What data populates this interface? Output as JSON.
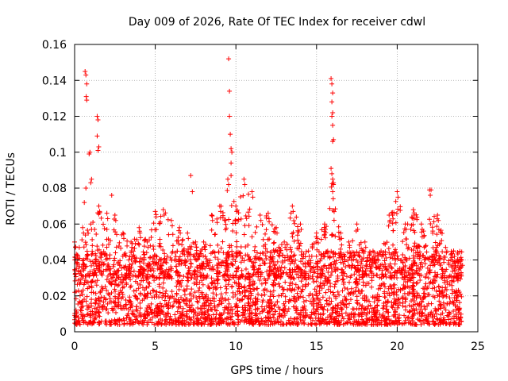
{
  "chart_data": {
    "type": "scatter",
    "title": "Day 009 of 2026, Rate Of TEC Index for receiver cdwl",
    "xlabel": "GPS time / hours",
    "ylabel": "ROTI / TECUs",
    "xlim": [
      0,
      25
    ],
    "ylim": [
      0,
      0.16
    ],
    "x_ticks": [
      0,
      5,
      10,
      15,
      20,
      25
    ],
    "x_tick_labels": [
      "0",
      "5",
      "10",
      "15",
      "20",
      "25"
    ],
    "y_ticks": [
      0,
      0.02,
      0.04,
      0.06,
      0.08,
      0.1,
      0.12,
      0.14,
      0.16
    ],
    "y_tick_labels": [
      "0",
      "0.02",
      "0.04",
      "0.06",
      "0.08",
      "0.1",
      "0.12",
      "0.14",
      "0.16"
    ],
    "grid": true,
    "marker": "+",
    "color": "#ff0000",
    "series": [
      {
        "name": "ROTI",
        "description_of_density": "dense band between ~0.005 and ~0.045 TECU/min for 0-24 h",
        "background_band": {
          "x_range": [
            0,
            24
          ],
          "y_min": 0.004,
          "y_max": 0.045
        },
        "envelope": [
          {
            "x": 0.0,
            "y": 0.05
          },
          {
            "x": 0.5,
            "y": 0.058
          },
          {
            "x": 1.0,
            "y": 0.06
          },
          {
            "x": 1.5,
            "y": 0.07
          },
          {
            "x": 2.0,
            "y": 0.066
          },
          {
            "x": 2.5,
            "y": 0.065
          },
          {
            "x": 3.0,
            "y": 0.055
          },
          {
            "x": 3.5,
            "y": 0.05
          },
          {
            "x": 4.0,
            "y": 0.058
          },
          {
            "x": 4.5,
            "y": 0.05
          },
          {
            "x": 5.0,
            "y": 0.067
          },
          {
            "x": 5.5,
            "y": 0.068
          },
          {
            "x": 6.0,
            "y": 0.062
          },
          {
            "x": 6.5,
            "y": 0.058
          },
          {
            "x": 7.0,
            "y": 0.055
          },
          {
            "x": 7.5,
            "y": 0.05
          },
          {
            "x": 8.0,
            "y": 0.05
          },
          {
            "x": 8.5,
            "y": 0.065
          },
          {
            "x": 9.0,
            "y": 0.07
          },
          {
            "x": 9.5,
            "y": 0.085
          },
          {
            "x": 10.0,
            "y": 0.07
          },
          {
            "x": 10.5,
            "y": 0.085
          },
          {
            "x": 11.0,
            "y": 0.078
          },
          {
            "x": 11.5,
            "y": 0.065
          },
          {
            "x": 12.0,
            "y": 0.066
          },
          {
            "x": 12.5,
            "y": 0.058
          },
          {
            "x": 13.0,
            "y": 0.05
          },
          {
            "x": 13.5,
            "y": 0.07
          },
          {
            "x": 14.0,
            "y": 0.06
          },
          {
            "x": 14.5,
            "y": 0.045
          },
          {
            "x": 15.0,
            "y": 0.055
          },
          {
            "x": 15.5,
            "y": 0.06
          },
          {
            "x": 16.0,
            "y": 0.085
          },
          {
            "x": 16.5,
            "y": 0.055
          },
          {
            "x": 17.0,
            "y": 0.05
          },
          {
            "x": 17.5,
            "y": 0.06
          },
          {
            "x": 18.0,
            "y": 0.05
          },
          {
            "x": 18.5,
            "y": 0.045
          },
          {
            "x": 19.0,
            "y": 0.045
          },
          {
            "x": 19.5,
            "y": 0.065
          },
          {
            "x": 20.0,
            "y": 0.078
          },
          {
            "x": 20.5,
            "y": 0.06
          },
          {
            "x": 21.0,
            "y": 0.068
          },
          {
            "x": 21.5,
            "y": 0.06
          },
          {
            "x": 22.0,
            "y": 0.079
          },
          {
            "x": 22.5,
            "y": 0.065
          },
          {
            "x": 23.0,
            "y": 0.047
          },
          {
            "x": 23.5,
            "y": 0.045
          },
          {
            "x": 24.0,
            "y": 0.04
          }
        ],
        "outliers": [
          {
            "x": 0.6,
            "y": 0.072
          },
          {
            "x": 0.7,
            "y": 0.08
          },
          {
            "x": 0.65,
            "y": 0.145
          },
          {
            "x": 0.7,
            "y": 0.143
          },
          {
            "x": 0.75,
            "y": 0.138
          },
          {
            "x": 0.72,
            "y": 0.131
          },
          {
            "x": 0.75,
            "y": 0.129
          },
          {
            "x": 0.9,
            "y": 0.099
          },
          {
            "x": 0.95,
            "y": 0.1
          },
          {
            "x": 1.0,
            "y": 0.083
          },
          {
            "x": 1.05,
            "y": 0.085
          },
          {
            "x": 1.4,
            "y": 0.12
          },
          {
            "x": 1.45,
            "y": 0.118
          },
          {
            "x": 1.4,
            "y": 0.109
          },
          {
            "x": 1.45,
            "y": 0.101
          },
          {
            "x": 1.5,
            "y": 0.103
          },
          {
            "x": 2.3,
            "y": 0.076
          },
          {
            "x": 7.2,
            "y": 0.087
          },
          {
            "x": 7.3,
            "y": 0.078
          },
          {
            "x": 9.55,
            "y": 0.152
          },
          {
            "x": 9.6,
            "y": 0.134
          },
          {
            "x": 9.6,
            "y": 0.12
          },
          {
            "x": 9.65,
            "y": 0.11
          },
          {
            "x": 9.7,
            "y": 0.102
          },
          {
            "x": 9.75,
            "y": 0.1
          },
          {
            "x": 9.7,
            "y": 0.094
          },
          {
            "x": 9.7,
            "y": 0.087
          },
          {
            "x": 15.9,
            "y": 0.141
          },
          {
            "x": 15.95,
            "y": 0.138
          },
          {
            "x": 16.0,
            "y": 0.133
          },
          {
            "x": 15.95,
            "y": 0.128
          },
          {
            "x": 16.0,
            "y": 0.122
          },
          {
            "x": 15.95,
            "y": 0.12
          },
          {
            "x": 16.0,
            "y": 0.115
          },
          {
            "x": 16.05,
            "y": 0.107
          },
          {
            "x": 16.0,
            "y": 0.106
          },
          {
            "x": 15.9,
            "y": 0.091
          },
          {
            "x": 15.95,
            "y": 0.088
          },
          {
            "x": 16.05,
            "y": 0.083
          },
          {
            "x": 16.0,
            "y": 0.078
          },
          {
            "x": 22.1,
            "y": 0.079
          }
        ]
      }
    ]
  }
}
